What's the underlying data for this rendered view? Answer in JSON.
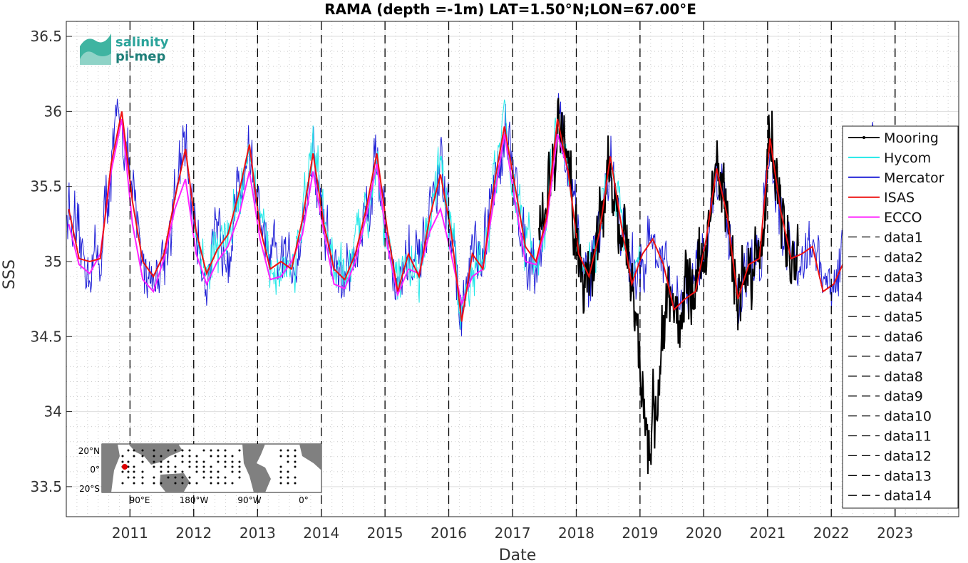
{
  "chart_data": {
    "type": "line",
    "title": "RAMA (depth =-1m) LAT=1.50°N;LON=67.00°E",
    "xlabel": "Date",
    "ylabel": "SSS",
    "x_range": [
      "2010-01-01",
      "2024-01-01"
    ],
    "ylim": [
      33.3,
      36.6
    ],
    "x_ticks": [
      "2011",
      "2012",
      "2013",
      "2014",
      "2015",
      "2016",
      "2017",
      "2018",
      "2019",
      "2020",
      "2021",
      "2022",
      "2023"
    ],
    "y_ticks": [
      "33.5",
      "34",
      "34.5",
      "35",
      "35.5",
      "36",
      "36.5"
    ],
    "grid": true,
    "legend_placement": "right",
    "colors": {
      "Mooring": "#000000",
      "Hycom": "#22e8e8",
      "Mercator": "#1f1fd6",
      "ISAS": "#ee1111",
      "ECCO": "#ff22ff",
      "vlines": "#000000"
    },
    "series": [
      {
        "name": "ISAS",
        "x": [
          "2010-01",
          "2010-03",
          "2010-05",
          "2010-07",
          "2010-09",
          "2010-11",
          "2011-01",
          "2011-03",
          "2011-05",
          "2011-07",
          "2011-09",
          "2011-11",
          "2012-01",
          "2012-03",
          "2012-05",
          "2012-07",
          "2012-09",
          "2012-11",
          "2013-01",
          "2013-03",
          "2013-05",
          "2013-07",
          "2013-09",
          "2013-11",
          "2014-01",
          "2014-03",
          "2014-05",
          "2014-07",
          "2014-09",
          "2014-11",
          "2015-01",
          "2015-03",
          "2015-05",
          "2015-07",
          "2015-09",
          "2015-11",
          "2016-01",
          "2016-03",
          "2016-05",
          "2016-07",
          "2016-09",
          "2016-11",
          "2017-01",
          "2017-03",
          "2017-05",
          "2017-07",
          "2017-09",
          "2017-11",
          "2018-01",
          "2018-03",
          "2018-05",
          "2018-07",
          "2018-09",
          "2018-11",
          "2019-01",
          "2019-03",
          "2019-05",
          "2019-07",
          "2019-09",
          "2019-11",
          "2020-01",
          "2020-03",
          "2020-05",
          "2020-07",
          "2020-09",
          "2020-11",
          "2021-01",
          "2021-03",
          "2021-05",
          "2021-07",
          "2021-09",
          "2021-11",
          "2022-01",
          "2022-03",
          "2022-05"
        ],
        "y": [
          35.35,
          35.02,
          35.0,
          35.02,
          35.65,
          36.0,
          35.4,
          35.0,
          34.9,
          35.05,
          35.42,
          35.75,
          35.2,
          34.92,
          35.08,
          35.18,
          35.45,
          35.78,
          35.22,
          34.95,
          35.0,
          34.95,
          35.28,
          35.72,
          35.25,
          34.95,
          34.88,
          35.05,
          35.35,
          35.72,
          35.2,
          34.8,
          35.05,
          34.9,
          35.3,
          35.58,
          35.2,
          34.6,
          35.05,
          34.95,
          35.5,
          35.9,
          35.5,
          35.1,
          35.0,
          35.3,
          35.95,
          35.6,
          35.05,
          34.9,
          35.2,
          35.7,
          35.25,
          34.85,
          35.05,
          35.15,
          34.98,
          34.68,
          34.75,
          34.8,
          35.15,
          35.62,
          35.3,
          34.75,
          34.98,
          35.02,
          35.82,
          35.35,
          35.02,
          35.05,
          35.1,
          34.8,
          34.85,
          35.0,
          35.08
        ]
      },
      {
        "name": "ECCO",
        "x": [
          "2010-01",
          "2010-03",
          "2010-05",
          "2010-07",
          "2010-09",
          "2010-11",
          "2011-01",
          "2011-03",
          "2011-05",
          "2011-07",
          "2011-09",
          "2011-11",
          "2012-01",
          "2012-03",
          "2012-05",
          "2012-07",
          "2012-09",
          "2012-11",
          "2013-01",
          "2013-03",
          "2013-05",
          "2013-07",
          "2013-09",
          "2013-11",
          "2014-01",
          "2014-03",
          "2014-05",
          "2014-07",
          "2014-09",
          "2014-11",
          "2015-01",
          "2015-03",
          "2015-05",
          "2015-07",
          "2015-09",
          "2015-11",
          "2016-01",
          "2016-03",
          "2016-05",
          "2016-07",
          "2016-09",
          "2016-11",
          "2017-01",
          "2017-03",
          "2017-05",
          "2017-07",
          "2017-09",
          "2017-11"
        ],
        "y": [
          35.25,
          34.98,
          34.92,
          35.05,
          35.6,
          35.95,
          35.25,
          34.88,
          34.8,
          35.02,
          35.35,
          35.55,
          35.05,
          34.85,
          35.0,
          35.1,
          35.3,
          35.6,
          35.15,
          34.88,
          34.9,
          35.0,
          35.18,
          35.6,
          35.2,
          34.85,
          34.82,
          35.0,
          35.3,
          35.65,
          35.1,
          34.78,
          34.95,
          34.92,
          35.2,
          35.35,
          35.05,
          34.72,
          34.9,
          34.95,
          35.4,
          35.85,
          35.4,
          35.0,
          34.98,
          35.25,
          35.85,
          35.6
        ]
      }
    ],
    "noisy_series": [
      {
        "name": "Mercator",
        "start": "2010-01-01",
        "end": "2023-01-01",
        "base": "ISAS",
        "noise": 0.22
      },
      {
        "name": "Hycom",
        "start": "2012-01-01",
        "end": "2018-12-31",
        "base": "ISAS",
        "noise": 0.18
      },
      {
        "name": "Mooring",
        "start": "2017-06-01",
        "end": "2021-06-30",
        "base": "ISAS",
        "noise": 0.25,
        "dip": {
          "center": "2019-03-01",
          "depth": 1.3,
          "width_days": 70
        }
      }
    ],
    "vlines": [
      {
        "name": "data1",
        "x": "2011-01-01"
      },
      {
        "name": "data2",
        "x": "2012-01-01"
      },
      {
        "name": "data3",
        "x": "2013-01-01"
      },
      {
        "name": "data4",
        "x": "2014-01-01"
      },
      {
        "name": "data5",
        "x": "2015-01-01"
      },
      {
        "name": "data6",
        "x": "2016-01-01"
      },
      {
        "name": "data7",
        "x": "2017-01-01"
      },
      {
        "name": "data8",
        "x": "2018-01-01"
      },
      {
        "name": "data9",
        "x": "2019-01-01"
      },
      {
        "name": "data10",
        "x": "2020-01-01"
      },
      {
        "name": "data11",
        "x": "2021-01-01"
      },
      {
        "name": "data12",
        "x": "2022-01-01"
      },
      {
        "name": "data13",
        "x": "2023-01-01"
      },
      {
        "name": "data14",
        "x": "2023-01-01"
      }
    ],
    "legend": [
      "Mooring",
      "Hycom",
      "Mercator",
      "ISAS",
      "ECCO",
      "data1",
      "data2",
      "data3",
      "data4",
      "data5",
      "data6",
      "data7",
      "data8",
      "data9",
      "data10",
      "data11",
      "data12",
      "data13",
      "data14"
    ]
  },
  "logo": {
    "line1": "salinity",
    "line2": "pi-mep"
  },
  "inset_map": {
    "lat_labels": [
      "20°N",
      "0°",
      "20°S"
    ],
    "lon_labels": [
      "90°E",
      "180°W",
      "90°W",
      "0°"
    ],
    "marker_color": "#dd0000"
  }
}
